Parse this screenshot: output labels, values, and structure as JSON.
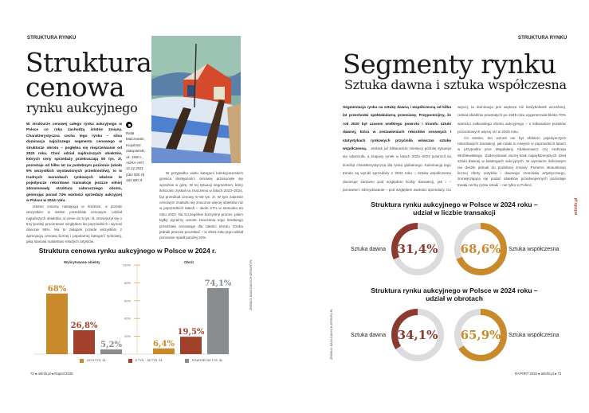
{
  "left_page": {
    "section": "STRUKTURA RYNKU",
    "title_line1": "Struktura",
    "title_line2": "cenowa",
    "subtitle": "rynku aukcyjnego",
    "lead": "W strukturze cenowej całego rynku aukcyjnego w Polsce co roku zachodzą istotne zmiany. Charakterystyczna cecha tego rynku – silna dominacja najniższego segmentu cenowego w strukturze obrotu – pogłębia się nieprzerwanie od 2020 roku. Choć udział najdroższych obiektów, których ceny sprzedaży przekraczają 50 tys. zł, pozostaje od kilku lat na podobnym poziomie (około 5% wszystkich wystawionych przedmiotów), to w trudnych warunkach rynkowych właśnie te pojedyncze rekordowe transakcje jeszcze silniej zdominowały strukturę całorocznego obrotu, generując ponad 74% wartości sprzedaży aukcyjnej w Polsce w 2024 roku.",
    "para1": "Istotne zmiany następują w średnim, a przede wszystkim w niskim przedziale cenowym. Udział najtańszych obiektów, w cenie do 5 tys. zł, zmniejszył się o trzy punkty procentowe względem lat poprzednich i wynosi obecnie 68%. Ma to związek przede wszystkim z aprecjacją cenową licznej i popularnej kategorii rynkowej, jaką stanowi malarstwo młodych artystów.",
    "para2": "W przypadku wielu kategorii kolekcjonerskich granica dostępności cenowej przesunęła się wyraźnie w górę. W tej sytuacji segmentem, który ilościowo zyskał na znaczeniu w latach 2023–2024, był przedział cenowy 5–50 tys. zł. W tym zakresie cenowym znalazło się znacznie więcej obiektów niż w poprzednich latach – około 27% w stosunku do roku 2023. Na szczególnie korzystny proces, jakim byłby wyraźny wzrost znaczenia tego średniego przedziału cenowego dla całości obrotu, trzeba jednak jeszcze poczekać – w 2024 roku jego udział ponownie spadł poniżej 20%.",
    "caption": [
      "Rafał",
      "Malczewski,",
      "Krajobraz",
      "zakopiański,",
      "ok. 1930 r.,",
      "AGRA-ART,",
      "12.12.2021",
      "(154 000 zł)",
      "184 800 zł"
    ],
    "source": "ŹRÓDŁO: BAZA DANYCH ARTINFO.PL",
    "footer": "72  ●  artinfo.pl  ●  Raport 2025"
  },
  "right_page": {
    "section": "STRUKTURA RYNKU",
    "title": "Segmenty rynku",
    "subtitle": "Sztuka dawna i sztuka współczesna",
    "lead": "Segmentacja rynku na sztukę dawną i współczesną od kilku lat przechodzi spektakularną przemianę. Przypomnijmy, że rok 2020 był czasem wielkiego powrotu i triumfu sztuki dawnej, która w zestawieniach rekordów cenowych i statystykach rynkowych przyćmiła wówczas sztukę współczesną.",
    "para1": "Jednak już kilkanaście miesięcy później sytuacja się odwróciła, a krajowy rynek w latach 2022–2023 powrócił na ścieżkę charakterystyczną dla rynku globalnego. Kulminacją tego trendu są wyniki sprzedaży z 2024 roku – sztuka współczesna dominuje zarówno pod względem liczby transakcji, jak i – ponownie i zdecydowanie – pod względem wartości sprzedaży. Co więcej, ta dominacja jest większa niż kiedykolwiek wcześniej. Udział obiektów powstałych po 1945 roku wygenerował blisko 70% wartości całkowitego obrotu aukcyjnego – o kilkanaście punktów procentowych więcej niż w 2020 roku.",
    "para2": "Co istotne, ten wzrost nie był efektem pojedynczych rekordowych transakcji, jak miało to miejsce w poprzednich latach w przypadku prac Magdaleny Abakanowicz czy Andrzeja Wróblewskiego. Zadecydował raczej brak najwybitniejszych dzieł sztuki dawnej w katalogach aukcyjnych. W wymiarze ilościowym nie doszło jednak do podobnej zmiany. Pomimo stosunkowo licznej oferty antyków i dawnego rzemiosła artystycznego, zmniejszająca się podaż obiektów przedwojennych pozostaje trwałą cechą rynku sztuki – nie tylko w Polsce.",
    "source": "ŹRÓDŁO: BAZA DANYCH ARTINFO.PL",
    "side_logo": "artinfo.pl",
    "footer": "RAPORT 2025  ●  artinfo.pl  ●  73"
  },
  "colors": {
    "gold": "#c98a2c",
    "rust": "#a2412b",
    "dark_red": "#8c3a30",
    "gray": "#8a8d8f",
    "light_gray": "#dcdcdf"
  },
  "chart_data": [
    {
      "type": "bar",
      "title": "Struktura cenowa rynku aukcyjnego w Polsce w 2024 r.",
      "groups": [
        "Wylicytowane obiekty",
        "Obrót"
      ],
      "series": [
        {
          "name": "DO 5 TYS. ZŁ",
          "values": [
            68,
            6.4
          ],
          "labels": [
            "68%",
            "6,4%"
          ],
          "color": "#c98a2c"
        },
        {
          "name": "5 TYS. - 50 TYS. ZŁ",
          "values": [
            26.8,
            19.5
          ],
          "labels": [
            "26,8%",
            "19,5%"
          ],
          "color": "#a2412b"
        },
        {
          "name": "POWYŻEJ 50 TYS. ZŁ",
          "values": [
            5.2,
            74.1
          ],
          "labels": [
            "5,2%",
            "74,1%"
          ],
          "color": "#8a8d8f"
        }
      ],
      "yticks": [
        "100%",
        "80%",
        "60%",
        "40%",
        "20%"
      ],
      "ylim": [
        0,
        100
      ],
      "legend": "bottom"
    },
    {
      "type": "pie",
      "title": "Struktura rynku aukcyjnego w Polsce w 2024 roku – udział w liczbie transakcji",
      "slices": [
        {
          "label": "Sztuka dawna",
          "value": 31.4,
          "text": "31,4%",
          "color": "#8c3a30"
        },
        {
          "label": "Sztuka współczesna",
          "value": 68.6,
          "text": "68,6%",
          "color": "#c98a2c"
        }
      ]
    },
    {
      "type": "pie",
      "title": "Struktura rynku aukcyjnego w Polsce w 2024  roku – udział w obrotach",
      "slices": [
        {
          "label": "Sztuka dawna",
          "value": 34.1,
          "text": "34,1%",
          "color": "#8c3a30"
        },
        {
          "label": "Sztuka współczesna",
          "value": 65.9,
          "text": "65,9%",
          "color": "#c98a2c"
        }
      ]
    }
  ]
}
